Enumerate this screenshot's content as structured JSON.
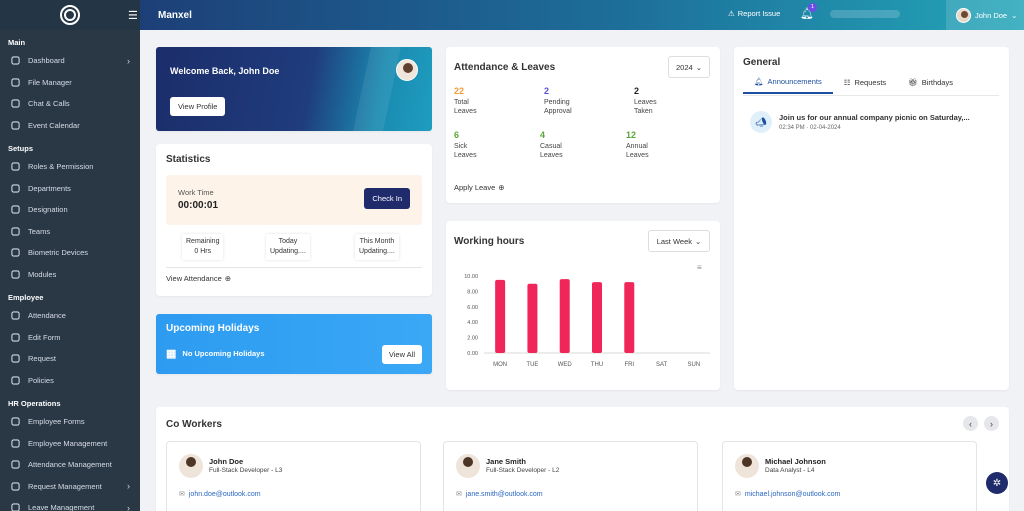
{
  "app": {
    "title": "Manxel"
  },
  "topbar": {
    "report_label": "Report Issue",
    "notif_count": "1",
    "user_name": "John Doe"
  },
  "sidebar": {
    "sections": [
      {
        "title": "Main",
        "items": [
          {
            "label": "Dashboard",
            "icon": "dashboard-icon",
            "chevron": true
          },
          {
            "label": "File Manager",
            "icon": "file-icon"
          },
          {
            "label": "Chat & Calls",
            "icon": "chat-icon"
          },
          {
            "label": "Event Calendar",
            "icon": "calendar-icon"
          }
        ]
      },
      {
        "title": "Setups",
        "items": [
          {
            "label": "Roles & Permission",
            "icon": "roles-icon"
          },
          {
            "label": "Departments",
            "icon": "departments-icon"
          },
          {
            "label": "Designation",
            "icon": "designation-icon"
          },
          {
            "label": "Teams",
            "icon": "teams-icon"
          },
          {
            "label": "Biometric Devices",
            "icon": "biometric-icon"
          },
          {
            "label": "Modules",
            "icon": "modules-icon"
          }
        ]
      },
      {
        "title": "Employee",
        "items": [
          {
            "label": "Attendance",
            "icon": "attendance-icon"
          },
          {
            "label": "Edit Form",
            "icon": "edit-form-icon"
          },
          {
            "label": "Request",
            "icon": "request-icon"
          },
          {
            "label": "Policies",
            "icon": "policies-icon"
          }
        ]
      },
      {
        "title": "HR Operations",
        "items": [
          {
            "label": "Employee Forms",
            "icon": "forms-icon"
          },
          {
            "label": "Employee Management",
            "icon": "employee-mgmt-icon"
          },
          {
            "label": "Attendance Management",
            "icon": "attendance-mgmt-icon"
          },
          {
            "label": "Request Management",
            "icon": "request-mgmt-icon",
            "chevron": true
          },
          {
            "label": "Leave Management",
            "icon": "leave-mgmt-icon",
            "chevron": true
          }
        ]
      }
    ]
  },
  "welcome": {
    "greeting": "Welcome Back, John Doe",
    "button": "View Profile"
  },
  "statistics": {
    "title": "Statistics",
    "work_time_label": "Work Time",
    "work_time_value": "00:00:01",
    "check_in": "Check In",
    "remaining_label": "Remaining",
    "remaining_value": "0 Hrs",
    "today_label": "Today",
    "today_value": "Updating....",
    "month_label": "This Month",
    "month_value": "Updating....",
    "link": "View Attendance"
  },
  "holidays": {
    "title": "Upcoming Holidays",
    "empty": "No Upcoming Holidays",
    "button": "View All"
  },
  "attendance": {
    "title": "Attendance & Leaves",
    "year": "2024",
    "metrics": [
      {
        "value": "22",
        "l1": "Total",
        "l2": "Leaves",
        "color": "#f29c38"
      },
      {
        "value": "2",
        "l1": "Pending",
        "l2": "Approval",
        "color": "#5a4fd6"
      },
      {
        "value": "2",
        "l1": "Leaves",
        "l2": "Taken",
        "color": "#222222"
      },
      {
        "value": "6",
        "l1": "Sick",
        "l2": "Leaves",
        "color": "#5aa63a"
      },
      {
        "value": "4",
        "l1": "Casual",
        "l2": "Leaves",
        "color": "#5aa63a"
      },
      {
        "value": "12",
        "l1": "Annual",
        "l2": "Leaves",
        "color": "#5aa63a"
      }
    ],
    "link": "Apply Leave"
  },
  "working_hours": {
    "title": "Working hours",
    "range": "Last Week"
  },
  "chart_data": {
    "type": "bar",
    "categories": [
      "MON",
      "TUE",
      "WED",
      "THU",
      "FRI",
      "SAT",
      "SUN"
    ],
    "values": [
      9.5,
      9.0,
      9.6,
      9.2,
      9.2,
      0,
      0
    ],
    "ylim": [
      0,
      10
    ],
    "yticks": [
      "0.00",
      "2.00",
      "4.00",
      "6.00",
      "8.00",
      "10.00"
    ],
    "color": "#f0255a"
  },
  "general": {
    "title": "General",
    "tabs": [
      "Announcements",
      "Requests",
      "Birthdays"
    ],
    "announcement": {
      "text": "Join us for our annual company picnic on Saturday,...",
      "time": "02:34 PM",
      "date": "02-04-2024"
    }
  },
  "coworkers": {
    "title": "Co Workers",
    "people": [
      {
        "name": "John Doe",
        "role": "Full-Stack Developer - L3",
        "email": "john.doe@outlook.com"
      },
      {
        "name": "Jane Smith",
        "role": "Full-Stack Developer - L2",
        "email": "jane.smith@outlook.com"
      },
      {
        "name": "Michael Johnson",
        "role": "Data Analyst - L4",
        "email": "michael.johnson@outlook.com"
      }
    ]
  }
}
